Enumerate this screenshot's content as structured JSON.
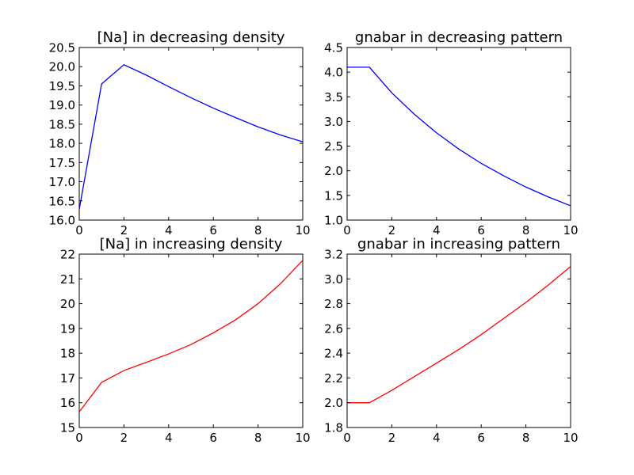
{
  "figure": {
    "background": "#ffffff"
  },
  "chart_data": [
    {
      "type": "line",
      "title": "[Na] in decreasing density",
      "xlabel": "",
      "ylabel": "",
      "xlim": [
        0,
        10
      ],
      "ylim": [
        16.0,
        20.5
      ],
      "xticks": [
        0,
        2,
        4,
        6,
        8,
        10
      ],
      "xtick_labels": [
        "0",
        "2",
        "4",
        "6",
        "8",
        "10"
      ],
      "yticks": [
        16.0,
        16.5,
        17.0,
        17.5,
        18.0,
        18.5,
        19.0,
        19.5,
        20.0,
        20.5
      ],
      "ytick_labels": [
        "16.0",
        "16.5",
        "17.0",
        "17.5",
        "18.0",
        "18.5",
        "19.0",
        "19.5",
        "20.0",
        "20.5"
      ],
      "grid": false,
      "series": [
        {
          "color": "#0000ff",
          "x": [
            0,
            1,
            2,
            3,
            4,
            5,
            6,
            7,
            8,
            9,
            10
          ],
          "y": [
            16.28,
            19.55,
            20.05,
            19.78,
            19.48,
            19.19,
            18.92,
            18.67,
            18.43,
            18.22,
            18.04
          ]
        }
      ]
    },
    {
      "type": "line",
      "title": "gnabar in decreasing pattern",
      "xlabel": "",
      "ylabel": "",
      "xlim": [
        0,
        10
      ],
      "ylim": [
        1.0,
        4.5
      ],
      "xticks": [
        0,
        2,
        4,
        6,
        8,
        10
      ],
      "xtick_labels": [
        "0",
        "2",
        "4",
        "6",
        "8",
        "10"
      ],
      "yticks": [
        1.0,
        1.5,
        2.0,
        2.5,
        3.0,
        3.5,
        4.0,
        4.5
      ],
      "ytick_labels": [
        "1.0",
        "1.5",
        "2.0",
        "2.5",
        "3.0",
        "3.5",
        "4.0",
        "4.5"
      ],
      "grid": false,
      "series": [
        {
          "color": "#0000ff",
          "x": [
            0,
            1,
            2,
            3,
            4,
            5,
            6,
            7,
            8,
            9,
            10
          ],
          "y": [
            4.1,
            4.1,
            3.58,
            3.15,
            2.77,
            2.44,
            2.15,
            1.9,
            1.67,
            1.47,
            1.29
          ]
        }
      ]
    },
    {
      "type": "line",
      "title": "[Na] in increasing density",
      "xlabel": "",
      "ylabel": "",
      "xlim": [
        0,
        10
      ],
      "ylim": [
        15,
        22
      ],
      "xticks": [
        0,
        2,
        4,
        6,
        8,
        10
      ],
      "xtick_labels": [
        "0",
        "2",
        "4",
        "6",
        "8",
        "10"
      ],
      "yticks": [
        15,
        16,
        17,
        18,
        19,
        20,
        21,
        22
      ],
      "ytick_labels": [
        "15",
        "16",
        "17",
        "18",
        "19",
        "20",
        "21",
        "22"
      ],
      "grid": false,
      "series": [
        {
          "color": "#ff0000",
          "x": [
            0,
            1,
            2,
            3,
            4,
            5,
            6,
            7,
            8,
            9,
            10
          ],
          "y": [
            15.63,
            16.82,
            17.3,
            17.63,
            17.97,
            18.35,
            18.82,
            19.35,
            20.0,
            20.8,
            21.75
          ]
        }
      ]
    },
    {
      "type": "line",
      "title": "gnabar in increasing pattern",
      "xlabel": "",
      "ylabel": "",
      "xlim": [
        0,
        10
      ],
      "ylim": [
        1.8,
        3.2
      ],
      "xticks": [
        0,
        2,
        4,
        6,
        8,
        10
      ],
      "xtick_labels": [
        "0",
        "2",
        "4",
        "6",
        "8",
        "10"
      ],
      "yticks": [
        1.8,
        2.0,
        2.2,
        2.4,
        2.6,
        2.8,
        3.0,
        3.2
      ],
      "ytick_labels": [
        "1.8",
        "2.0",
        "2.2",
        "2.4",
        "2.6",
        "2.8",
        "3.0",
        "3.2"
      ],
      "grid": false,
      "series": [
        {
          "color": "#ff0000",
          "x": [
            0,
            1,
            2,
            3,
            4,
            5,
            6,
            7,
            8,
            9,
            10
          ],
          "y": [
            2.0,
            2.0,
            2.1,
            2.21,
            2.32,
            2.43,
            2.55,
            2.68,
            2.81,
            2.95,
            3.1
          ]
        }
      ]
    }
  ]
}
